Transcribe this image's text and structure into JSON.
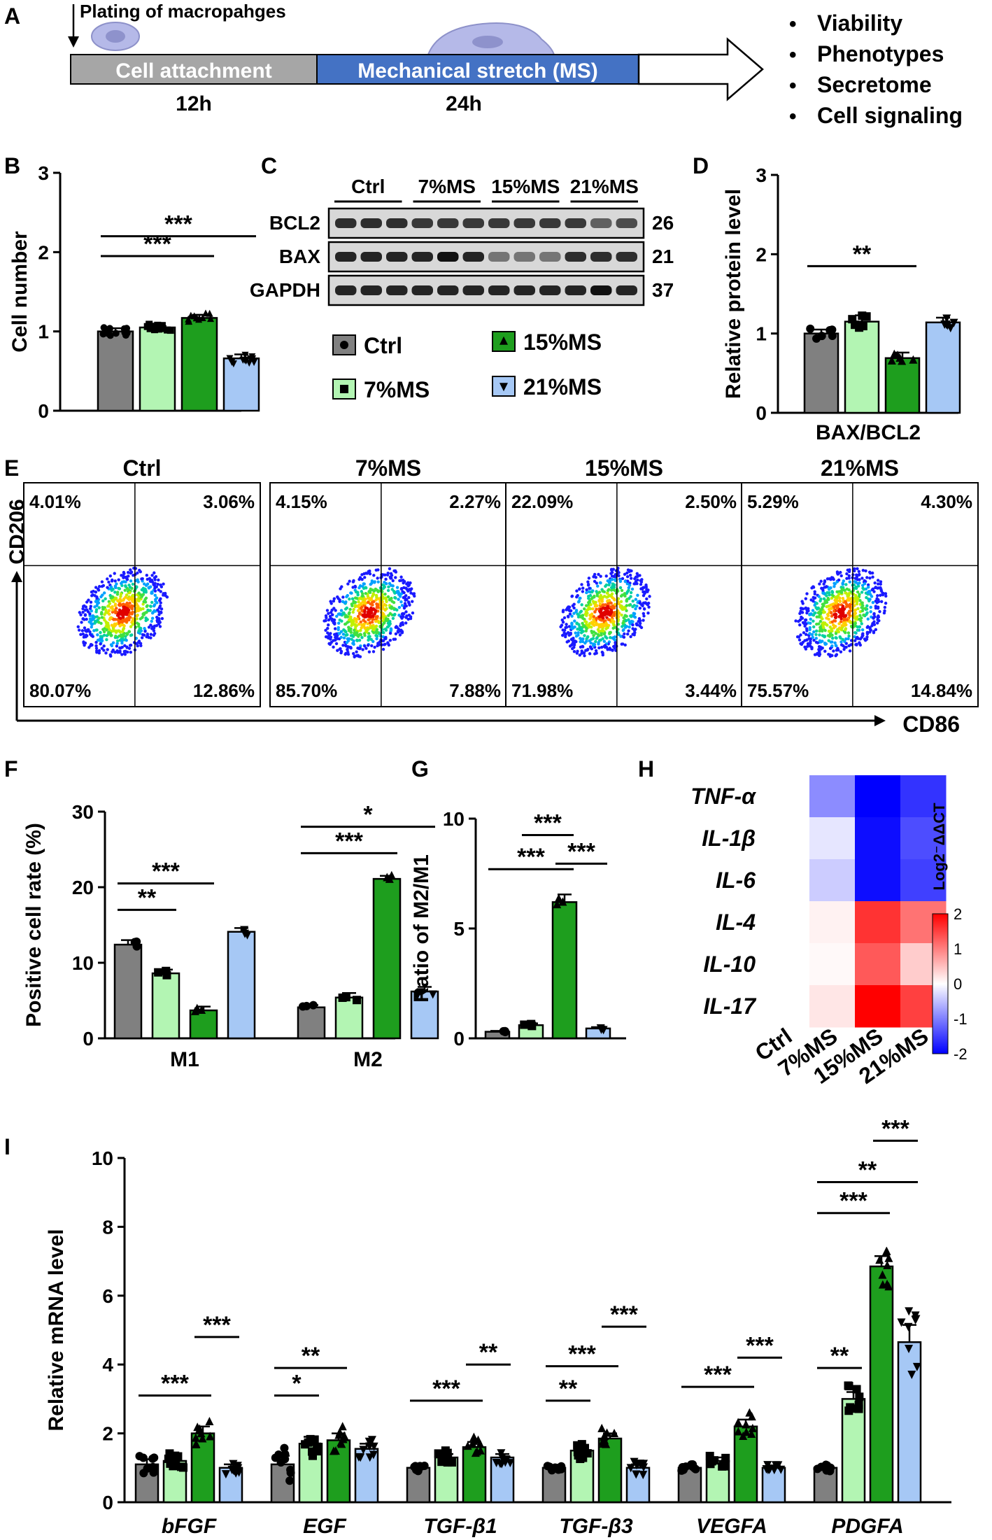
{
  "panel_letters": [
    "A",
    "B",
    "C",
    "D",
    "E",
    "F",
    "G",
    "H",
    "I"
  ],
  "colors": {
    "ctrl": "#808080",
    "ms7": "#b3f5b3",
    "ms15": "#1e9e1e",
    "ms21": "#a6c8f5",
    "stretch": "#4472c4",
    "attach": "#a6a6a6"
  },
  "timeline": {
    "plating": "Plating of macropahges",
    "attach_label": "Cell attachment",
    "attach_time": "12h",
    "stretch_label": "Mechanical stretch (MS)",
    "stretch_time": "24h",
    "outcomes": [
      "Viability",
      "Phenotypes",
      "Secretome",
      "Cell signaling"
    ]
  },
  "legend": [
    {
      "label": "Ctrl",
      "marker": "circle",
      "color": "#808080"
    },
    {
      "label": "7%MS",
      "marker": "square",
      "color": "#b3f5b3"
    },
    {
      "label": "15%MS",
      "marker": "triangle",
      "color": "#1e9e1e"
    },
    {
      "label": "21%MS",
      "marker": "triangle-down",
      "color": "#a6c8f5"
    }
  ],
  "blot": {
    "groups": [
      "Ctrl",
      "7%MS",
      "15%MS",
      "21%MS"
    ],
    "rows": [
      {
        "name": "BCL2",
        "kda": "26"
      },
      {
        "name": "BAX",
        "kda": "21"
      },
      {
        "name": "GAPDH",
        "kda": "37"
      }
    ]
  },
  "flow": {
    "xlabel": "CD86",
    "ylabel": "CD206",
    "panels": [
      {
        "title": "Ctrl",
        "ul": "4.01%",
        "ur": "3.06%",
        "ll": "80.07%",
        "lr": "12.86%"
      },
      {
        "title": "7%MS",
        "ul": "4.15%",
        "ur": "2.27%",
        "ll": "85.70%",
        "lr": "7.88%"
      },
      {
        "title": "15%MS",
        "ul": "22.09%",
        "ur": "2.50%",
        "ll": "71.98%",
        "lr": "3.44%"
      },
      {
        "title": "21%MS",
        "ul": "5.29%",
        "ur": "4.30%",
        "ll": "75.57%",
        "lr": "14.84%"
      }
    ]
  },
  "chart_data": [
    {
      "id": "B",
      "type": "bar",
      "ylabel": "Cell number",
      "ylim": [
        0,
        3
      ],
      "yticks": [
        "0",
        "1",
        "2",
        "3"
      ],
      "values": [
        1.0,
        1.05,
        1.17,
        0.66
      ],
      "errors": [
        0.04,
        0.03,
        0.04,
        0.05
      ],
      "sig": [
        {
          "from": 0,
          "to": 2,
          "label": "***",
          "y": 1.95
        },
        {
          "from": 0,
          "to": 3,
          "label": "***",
          "y": 2.2
        }
      ]
    },
    {
      "id": "D",
      "type": "bar",
      "ylabel": "Relative protein level",
      "xlabel": "BAX/BCL2",
      "ylim": [
        0,
        3
      ],
      "yticks": [
        "0",
        "1",
        "2",
        "3"
      ],
      "values": [
        1.0,
        1.15,
        0.69,
        1.14
      ],
      "errors": [
        0.05,
        0.08,
        0.07,
        0.06
      ],
      "sig": [
        {
          "from": 0,
          "to": 2,
          "label": "**",
          "y": 1.85
        }
      ]
    },
    {
      "id": "F",
      "type": "bar",
      "ylabel": "Positive cell rate (%)",
      "ylim": [
        0,
        30
      ],
      "yticks": [
        "0",
        "10",
        "20",
        "30"
      ],
      "categories": [
        "M1",
        "M2"
      ],
      "series": [
        {
          "group": "Ctrl",
          "values": [
            12.4,
            4.1
          ]
        },
        {
          "group": "7%MS",
          "values": [
            8.6,
            5.4
          ]
        },
        {
          "group": "15%MS",
          "values": [
            3.7,
            21.1
          ]
        },
        {
          "group": "21%MS",
          "values": [
            14.1,
            6.2
          ]
        }
      ],
      "errors": [
        [
          0.6,
          0.3
        ],
        [
          0.5,
          0.6
        ],
        [
          0.5,
          0.4
        ],
        [
          0.5,
          0.6
        ]
      ],
      "sig": [
        {
          "cat": 0,
          "from": 0,
          "to": 1,
          "label": "**",
          "y": 17
        },
        {
          "cat": 0,
          "from": 0,
          "to": 2,
          "label": "***",
          "y": 20.5
        },
        {
          "cat": 1,
          "from": 0,
          "to": 2,
          "label": "***",
          "y": 24.5
        },
        {
          "cat": 1,
          "from": 0,
          "to": 3,
          "label": "*",
          "y": 28
        }
      ]
    },
    {
      "id": "G",
      "type": "bar",
      "ylabel": "Ratio of M2/M1",
      "ylim": [
        0,
        10
      ],
      "yticks": [
        "0",
        "5",
        "10"
      ],
      "values": [
        0.3,
        0.6,
        6.2,
        0.45
      ],
      "errors": [
        0.04,
        0.08,
        0.35,
        0.06
      ],
      "sig": [
        {
          "from": 0,
          "to": 2,
          "label": "***",
          "y": 7.7
        },
        {
          "from": 1,
          "to": 2,
          "label": "***",
          "y": 9.25
        },
        {
          "from": 2,
          "to": 3,
          "label": "***",
          "y": 7.95
        }
      ]
    },
    {
      "id": "H",
      "type": "heatmap",
      "rows": [
        "TNF-α",
        "IL-1β",
        "IL-6",
        "IL-4",
        "IL-10",
        "IL-17"
      ],
      "cols": [
        "Ctrl",
        "7%MS",
        "15%MS",
        "21%MS"
      ],
      "values": [
        [
          0,
          -0.9,
          -2.0,
          -1.6
        ],
        [
          0,
          -0.2,
          -1.9,
          -1.4
        ],
        [
          0,
          -0.4,
          -1.9,
          -1.5
        ],
        [
          0,
          0.1,
          1.6,
          1.1
        ],
        [
          0,
          0.05,
          1.3,
          0.4
        ],
        [
          0,
          0.2,
          2.0,
          1.5
        ]
      ],
      "colorbar_label": "Log2⁻ΔΔCT",
      "colorbar_ticks": [
        "2",
        "1",
        "0",
        "-1",
        "-2"
      ],
      "crange": [
        -2,
        2
      ]
    },
    {
      "id": "I",
      "type": "bar",
      "ylabel": "Relative mRNA level",
      "ylim": [
        0,
        10
      ],
      "yticks": [
        "0",
        "2",
        "4",
        "6",
        "8",
        "10"
      ],
      "categories": [
        "bFGF",
        "EGF",
        "TGF-β1",
        "TGF-β3",
        "VEGFA",
        "PDGFA"
      ],
      "series": [
        {
          "group": "Ctrl",
          "values": [
            1.1,
            1.1,
            1.0,
            1.0,
            1.0,
            1.0
          ]
        },
        {
          "group": "7%MS",
          "values": [
            1.2,
            1.7,
            1.3,
            1.5,
            1.2,
            3.0
          ]
        },
        {
          "group": "15%MS",
          "values": [
            2.0,
            1.8,
            1.6,
            1.85,
            2.2,
            6.85
          ]
        },
        {
          "group": "21%MS",
          "values": [
            1.0,
            1.55,
            1.3,
            1.0,
            1.0,
            4.65
          ]
        }
      ],
      "errors": [
        [
          0.15,
          0.25,
          0.05,
          0.05,
          0.05,
          0.05
        ],
        [
          0.12,
          0.2,
          0.1,
          0.15,
          0.1,
          0.2
        ],
        [
          0.2,
          0.2,
          0.15,
          0.15,
          0.2,
          0.3
        ],
        [
          0.1,
          0.15,
          0.1,
          0.1,
          0.05,
          0.5
        ]
      ],
      "sig": [
        {
          "cat": 0,
          "from": 0,
          "to": 2,
          "label": "***",
          "y": 3.1
        },
        {
          "cat": 0,
          "from": 2,
          "to": 3,
          "label": "***",
          "y": 4.8
        },
        {
          "cat": 1,
          "from": 0,
          "to": 1,
          "label": "*",
          "y": 3.1
        },
        {
          "cat": 1,
          "from": 0,
          "to": 2,
          "label": "**",
          "y": 3.9
        },
        {
          "cat": 2,
          "from": 0,
          "to": 2,
          "label": "***",
          "y": 2.95
        },
        {
          "cat": 2,
          "from": 2,
          "to": 3,
          "label": "**",
          "y": 4.0
        },
        {
          "cat": 3,
          "from": 0,
          "to": 1,
          "label": "**",
          "y": 2.95
        },
        {
          "cat": 3,
          "from": 0,
          "to": 2,
          "label": "***",
          "y": 3.95
        },
        {
          "cat": 3,
          "from": 2,
          "to": 3,
          "label": "***",
          "y": 5.1
        },
        {
          "cat": 4,
          "from": 0,
          "to": 2,
          "label": "***",
          "y": 3.35
        },
        {
          "cat": 4,
          "from": 2,
          "to": 3,
          "label": "***",
          "y": 4.2
        },
        {
          "cat": 5,
          "from": 0,
          "to": 1,
          "label": "**",
          "y": 3.9
        },
        {
          "cat": 5,
          "from": 0,
          "to": 2,
          "label": "***",
          "y": 8.4
        },
        {
          "cat": 5,
          "from": 0,
          "to": 3,
          "label": "**",
          "y": 9.3
        },
        {
          "cat": 5,
          "from": 2,
          "to": 3,
          "label": "***",
          "y": 10.5
        }
      ]
    }
  ]
}
